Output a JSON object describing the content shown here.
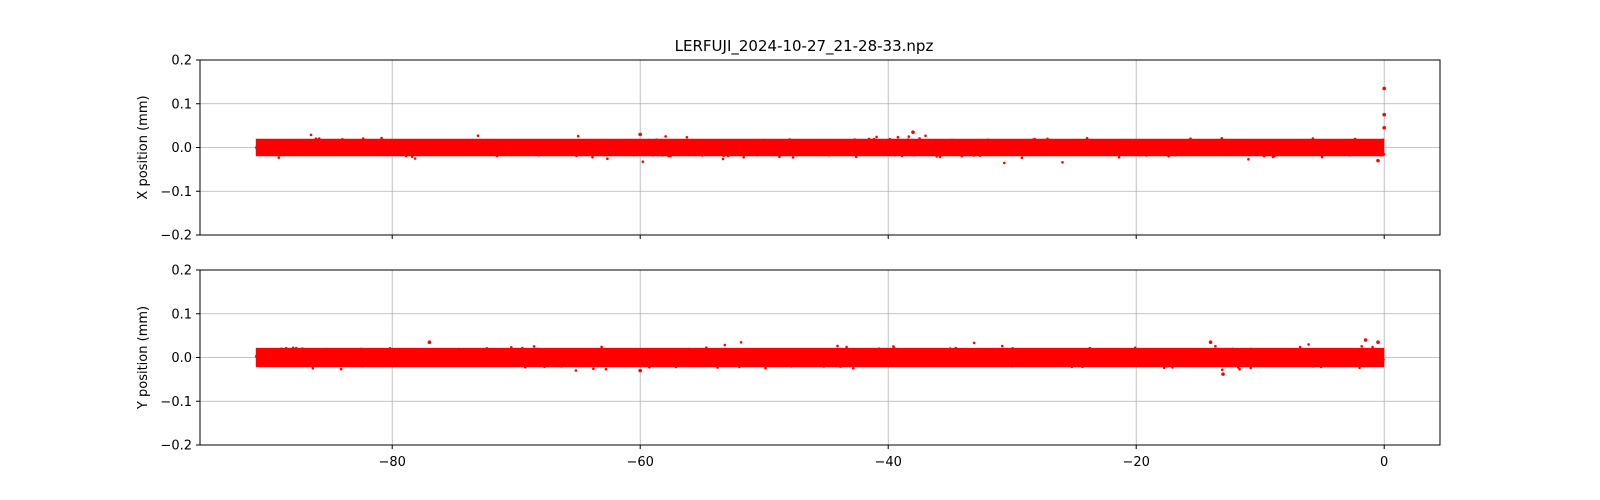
{
  "chart_data": {
    "type": "scatter",
    "title": "LERFUJI_2024-10-27_21-28-33.npz",
    "series_color": "#ff0000",
    "grid": true,
    "shared_x": {
      "ticks": [
        -80,
        -60,
        -40,
        -20,
        0
      ],
      "tick_labels": [
        "−80",
        "−60",
        "−40",
        "−20",
        "0"
      ],
      "xlim": [
        -95.5,
        4.5
      ],
      "data_range": [
        -91,
        0
      ]
    },
    "panels": [
      {
        "ylabel": "X position (mm)",
        "ylim": [
          -0.2,
          0.2
        ],
        "yticks": [
          -0.2,
          -0.1,
          0.0,
          0.1,
          0.2
        ],
        "ytick_labels": [
          "−0.2",
          "−0.1",
          "0.0",
          "0.1",
          "0.2"
        ],
        "band_center": 0.0,
        "band_half_width": 0.02,
        "outliers": [
          {
            "x": 0.0,
            "y": 0.135
          },
          {
            "x": 0.0,
            "y": 0.075
          },
          {
            "x": 0.0,
            "y": 0.045
          },
          {
            "x": -38,
            "y": 0.035
          },
          {
            "x": -60,
            "y": 0.03
          },
          {
            "x": -0.5,
            "y": -0.03
          }
        ]
      },
      {
        "ylabel": "Y position (mm)",
        "ylim": [
          -0.2,
          0.2
        ],
        "yticks": [
          -0.2,
          -0.1,
          0.0,
          0.1,
          0.2
        ],
        "ytick_labels": [
          "−0.2",
          "−0.1",
          "0.0",
          "0.1",
          "0.2"
        ],
        "band_center": 0.0,
        "band_half_width": 0.022,
        "outliers": [
          {
            "x": -1.5,
            "y": 0.04
          },
          {
            "x": -0.5,
            "y": 0.035
          },
          {
            "x": -77,
            "y": 0.035
          },
          {
            "x": -14,
            "y": 0.035
          },
          {
            "x": -13,
            "y": -0.038
          },
          {
            "x": -60,
            "y": -0.03
          }
        ]
      }
    ]
  }
}
